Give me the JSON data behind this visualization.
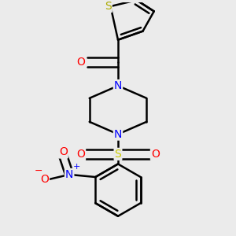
{
  "bg_color": "#ebebeb",
  "atom_colors": {
    "C": "#000000",
    "N": "#0000ff",
    "O": "#ff0000",
    "S_thiophene": "#aaaa00",
    "S_sulfonyl": "#cccc00",
    "H": "#000000"
  },
  "bond_width": 1.8,
  "figsize": [
    3.0,
    3.0
  ],
  "dpi": 100,
  "xlim": [
    0.05,
    0.95
  ],
  "ylim": [
    0.03,
    0.97
  ]
}
